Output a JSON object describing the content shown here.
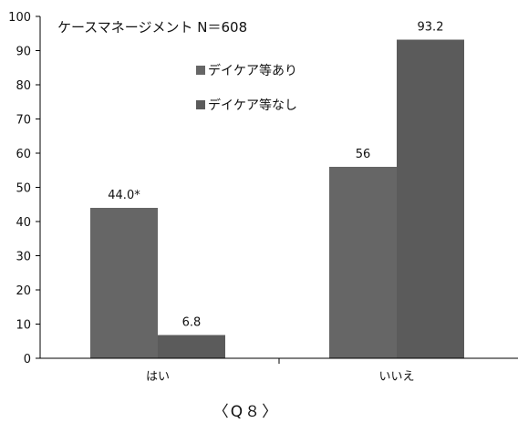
{
  "chart_data": {
    "type": "bar",
    "title": "ケースマネージメント  N＝608",
    "categories": [
      "はい",
      "いいえ"
    ],
    "series": [
      {
        "name": "デイケア等あり",
        "values": [
          44.0,
          56
        ],
        "labels": [
          "44.0*",
          "56"
        ],
        "color": "#666666"
      },
      {
        "name": "デイケア等なし",
        "values": [
          6.8,
          93.2
        ],
        "labels": [
          "6.8",
          "93.2"
        ],
        "color": "#5b5b5b"
      }
    ],
    "ylim": [
      0,
      100
    ],
    "yticks": [
      0,
      10,
      20,
      30,
      40,
      50,
      60,
      70,
      80,
      90,
      100
    ],
    "ytick_labels": [
      "0",
      "10",
      "20",
      "30",
      "40",
      "50",
      "60",
      "70",
      "80",
      "90",
      "100"
    ],
    "grid": false,
    "legend_position": "inside-top"
  },
  "footer": {
    "caption": "〈Q８〉"
  }
}
